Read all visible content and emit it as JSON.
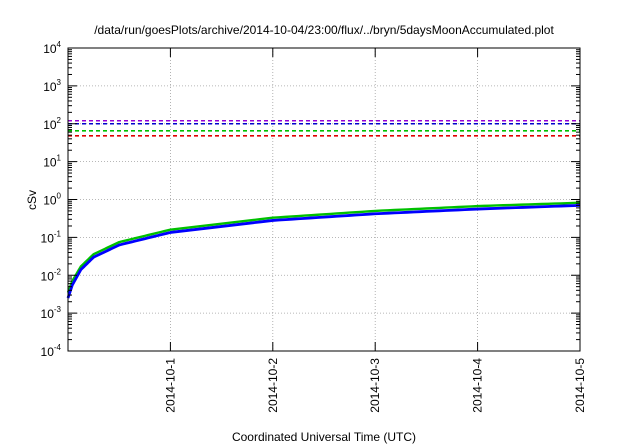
{
  "chart_data": {
    "type": "line",
    "title": "/data/run/goesPlots/archive/2014-10-04/23:00/flux/../bryn/5daysMoonAccumulated.plot",
    "xlabel": "Coordinated Universal Time (UTC)",
    "ylabel": "cSv",
    "yscale": "log",
    "xlim": [
      "2014-09-30",
      "2014-10-05"
    ],
    "ylim": [
      0.0001,
      10000
    ],
    "grid": true,
    "x_ticks": [
      "2014-10-1",
      "2014-10-2",
      "2014-10-3",
      "2014-10-4",
      "2014-10-5"
    ],
    "y_ticks": [
      {
        "value": 0.0001,
        "base": "10",
        "exp": "-4"
      },
      {
        "value": 0.001,
        "base": "10",
        "exp": "-3"
      },
      {
        "value": 0.01,
        "base": "10",
        "exp": "-2"
      },
      {
        "value": 0.1,
        "base": "10",
        "exp": "-1"
      },
      {
        "value": 1,
        "base": "10",
        "exp": "0"
      },
      {
        "value": 10,
        "base": "10",
        "exp": "1"
      },
      {
        "value": 100,
        "base": "10",
        "exp": "2"
      },
      {
        "value": 1000,
        "base": "10",
        "exp": "3"
      },
      {
        "value": 10000,
        "base": "10",
        "exp": "4"
      }
    ],
    "thresholds": [
      {
        "value": 120,
        "color": "#9400d3"
      },
      {
        "value": 100,
        "color": "#0000cd"
      },
      {
        "value": 65,
        "color": "#00c000"
      },
      {
        "value": 48,
        "color": "#e00000"
      }
    ],
    "series": [
      {
        "color": "#00c000",
        "x": [
          "2014-09-30T00:00",
          "2014-09-30T01:00",
          "2014-09-30T03:00",
          "2014-09-30T06:00",
          "2014-09-30T12:00",
          "2014-10-01T00:00",
          "2014-10-02T00:00",
          "2014-10-03T00:00",
          "2014-10-04T00:00",
          "2014-10-05T00:00"
        ],
        "y": [
          0.0035,
          0.007,
          0.017,
          0.036,
          0.075,
          0.16,
          0.33,
          0.5,
          0.67,
          0.82
        ]
      },
      {
        "color": "#0000ff",
        "x": [
          "2014-09-30T00:00",
          "2014-09-30T01:00",
          "2014-09-30T03:00",
          "2014-09-30T06:00",
          "2014-09-30T12:00",
          "2014-10-01T00:00",
          "2014-10-02T00:00",
          "2014-10-03T00:00",
          "2014-10-04T00:00",
          "2014-10-05T00:00"
        ],
        "y": [
          0.0025,
          0.0055,
          0.014,
          0.03,
          0.063,
          0.135,
          0.28,
          0.42,
          0.56,
          0.7
        ]
      }
    ]
  }
}
